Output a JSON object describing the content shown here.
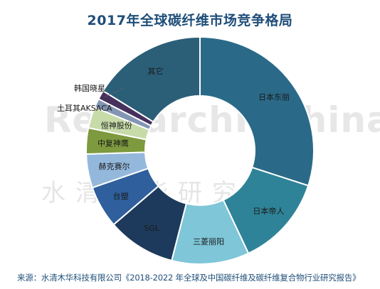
{
  "title": "2017年全球碳纤维市场竞争格局",
  "watermark": {
    "en": "ResearchInChina",
    "zh": "水清木华研究中心"
  },
  "source": "来源：水清木华科技有限公司《2018-2022 年全球及中国碳纤维及碳纤维复合物行业研究报告》",
  "chart_data": {
    "type": "pie",
    "donut": true,
    "title": "2017年全球碳纤维市场竞争格局",
    "unit": "percent",
    "legend": "none (labels on slices)",
    "slices": [
      {
        "label": "日本东丽",
        "value": 30.0,
        "color": "#2a6a88"
      },
      {
        "label": "日本帝人",
        "value": 13.0,
        "color": "#2f8398"
      },
      {
        "label": "三菱丽阳",
        "value": 11.0,
        "color": "#7ec6d8"
      },
      {
        "label": "SGL",
        "value": 9.7,
        "color": "#1d3a5c"
      },
      {
        "label": "台塑",
        "value": 6.0,
        "color": "#2f5f9c"
      },
      {
        "label": "赫克赛尔",
        "value": 4.8,
        "color": "#94b8dc"
      },
      {
        "label": "中复神鹰",
        "value": 3.7,
        "color": "#7d9a3e"
      },
      {
        "label": "恒神股份",
        "value": 3.0,
        "color": "#c7dba9"
      },
      {
        "label": "土耳其AKSACA",
        "value": 1.3,
        "color": "#8296b4"
      },
      {
        "label": "韩国晓星",
        "value": 1.3,
        "color": "#46305c"
      },
      {
        "label": "其它",
        "value": 16.2,
        "color": "#2b5f78"
      }
    ]
  }
}
